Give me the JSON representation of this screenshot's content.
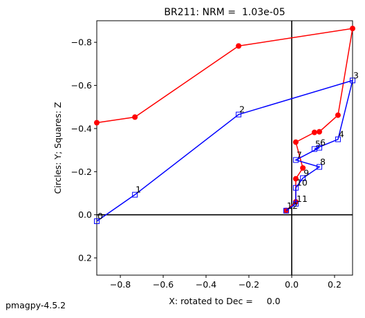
{
  "chart_data": {
    "type": "line",
    "title": "BR211: NRM =  1.03e-05",
    "x_label": "X: rotated to Dec =     0.0",
    "y_label": "Circles: Y; Squares: Z",
    "footer": "pmagpy-4.5.2",
    "xlim": [
      -0.91,
      0.284
    ],
    "ylim": [
      0.28,
      -0.9
    ],
    "xticks": [
      {
        "value": -0.8,
        "label": "−0.8"
      },
      {
        "value": -0.6,
        "label": "−0.6"
      },
      {
        "value": -0.4,
        "label": "−0.4"
      },
      {
        "value": -0.2,
        "label": "−0.2"
      },
      {
        "value": 0,
        "label": "0.0"
      },
      0.2
    ],
    "yticks": [
      {
        "value": -0.8,
        "label": "−0.8"
      },
      {
        "value": -0.6,
        "label": "−0.6"
      },
      {
        "value": -0.4,
        "label": "−0.4"
      },
      {
        "value": -0.2,
        "label": "−0.2"
      },
      {
        "value": 0,
        "label": "0.0"
      },
      0.2
    ],
    "series": [
      {
        "color": "#ff0000",
        "marker": "circle",
        "x": [
          -0.91,
          -0.732,
          -0.248,
          0.284,
          0.216,
          0.129,
          0.106,
          0.019,
          0.052,
          0.019,
          0.019,
          -0.026
        ],
        "values": [
          -0.427,
          -0.453,
          -0.783,
          -0.864,
          -0.462,
          -0.385,
          -0.382,
          -0.337,
          -0.217,
          -0.167,
          -0.06,
          -0.02
        ]
      },
      {
        "color": "#0000ff",
        "marker": "square",
        "x": [
          -0.91,
          -0.732,
          -0.248,
          0.284,
          0.216,
          0.106,
          0.129,
          0.019,
          0.129,
          0.052,
          0.019,
          0.019,
          -0.026
        ],
        "values": [
          0.03,
          -0.093,
          -0.465,
          -0.623,
          -0.35,
          -0.305,
          -0.311,
          -0.254,
          -0.222,
          -0.17,
          -0.125,
          -0.051,
          -0.019
        ],
        "point_labels": [
          "0",
          "1",
          "2",
          "3",
          "4",
          "5",
          "6",
          "7",
          "8",
          "9",
          "10",
          "11",
          "12"
        ]
      }
    ]
  }
}
